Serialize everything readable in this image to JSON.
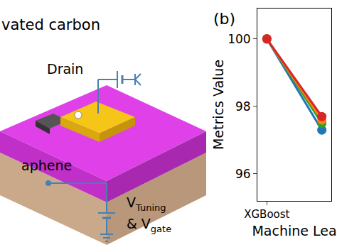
{
  "diagram": {
    "carbon_label": "vated carbon",
    "drain_label": "Drain",
    "layer_label": "aphene",
    "voltage_label": [
      {
        "base": "V",
        "sub": "Tuning"
      },
      {
        "base": "& V",
        "sub": "gate"
      }
    ]
  },
  "chart_data": {
    "type": "line",
    "annotations": [
      "(b)"
    ],
    "x_label": "Machine Lea",
    "y_label": "Metrics Value",
    "categories": [
      "XGBoost",
      null
    ],
    "series": [
      {
        "color": "#1f77b4",
        "values": [
          100,
          97.3
        ]
      },
      {
        "color": "#2ca02c",
        "values": [
          100,
          97.5
        ]
      },
      {
        "color": "#ff7f0e",
        "values": [
          100,
          97.6
        ]
      },
      {
        "color": "#d62728",
        "values": [
          100,
          97.7
        ]
      }
    ],
    "marker": "circle",
    "ylim": [
      95.2,
      100.9
    ],
    "yticks": [
      96,
      98,
      100
    ],
    "grid": false
  }
}
